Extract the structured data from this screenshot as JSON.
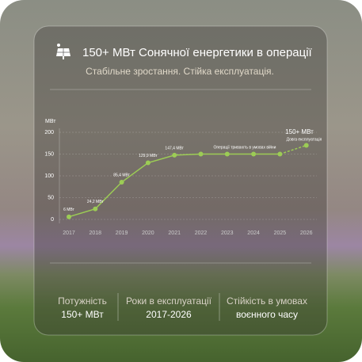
{
  "header": {
    "title": "150+ МВт Сонячної енергетики в операції",
    "subtitle": "Стабільне зростання. Стійка експлуатація."
  },
  "chart_data": {
    "type": "line",
    "y_label": "МВт",
    "categories": [
      "2017",
      "2018",
      "2019",
      "2020",
      "2021",
      "2022",
      "2023",
      "2024",
      "2025",
      "2026"
    ],
    "series": [
      {
        "name": "МВт",
        "color": "#9ccc55",
        "values": [
          6,
          24.2,
          85.4,
          129.9,
          147.4,
          150,
          150,
          150,
          150,
          170
        ],
        "value_labels": [
          "6 МВт",
          "24,2 МВт",
          "85,4 МВт",
          "129,9 МВт",
          "147,4 МВт",
          null,
          null,
          null,
          null,
          null
        ]
      }
    ],
    "ylim": [
      0,
      200
    ],
    "yticks": [
      0,
      50,
      100,
      150,
      200
    ],
    "grid": true,
    "annotations": [
      "Операції тривають в умовах війни",
      "150+ МВт",
      "Довга експлуатація"
    ]
  },
  "stats": [
    {
      "label": "Потужність",
      "value": "150+ МВт"
    },
    {
      "label": "Роки в експлуатації",
      "value": "2017-2026"
    },
    {
      "label": "Стійкість в умовах",
      "value": "воєнного часу"
    }
  ]
}
